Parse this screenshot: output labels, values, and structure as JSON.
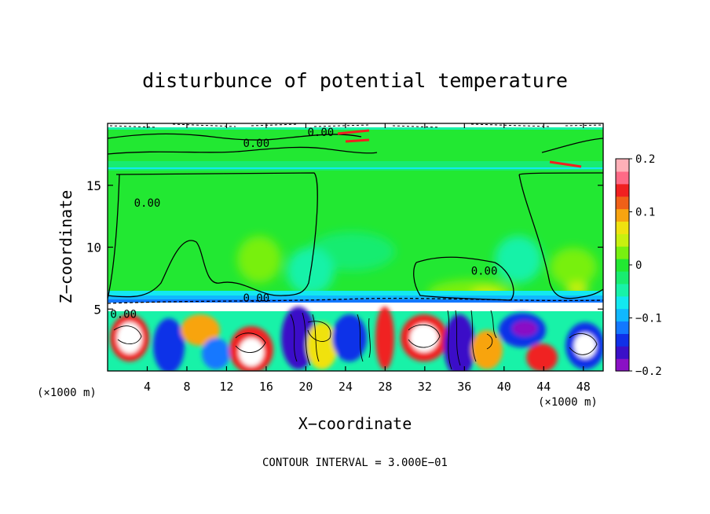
{
  "chart_data": {
    "type": "heatmap",
    "title": "disturbunce of potential temperature",
    "xlabel": "X−coordinate",
    "ylabel": "Z−coordinate",
    "x_unit_left": "(×1000 m)",
    "x_unit_right": "(×1000 m)",
    "xlim": [
      0,
      50
    ],
    "ylim": [
      0,
      20
    ],
    "x_ticks": [
      "4",
      "8",
      "12",
      "16",
      "20",
      "24",
      "28",
      "32",
      "36",
      "40",
      "44",
      "48"
    ],
    "x_tick_values": [
      4,
      8,
      12,
      16,
      20,
      24,
      28,
      32,
      36,
      40,
      44,
      48
    ],
    "y_ticks": [
      "5",
      "10",
      "15"
    ],
    "y_tick_values": [
      5,
      10,
      15
    ],
    "contour_labels": [
      {
        "text": "0.00",
        "x": 15,
        "y": 18.4
      },
      {
        "text": "0.00",
        "x": 21.5,
        "y": 19.3
      },
      {
        "text": "0.00",
        "x": 4,
        "y": 13.6
      },
      {
        "text": "0.00",
        "x": 15,
        "y": 5.9
      },
      {
        "text": "0.00",
        "x": 38,
        "y": 8.1
      },
      {
        "text": "0.00",
        "x": 1.6,
        "y": 4.6
      }
    ],
    "contour_interval_text": "CONTOUR INTERVAL = 3.000E−01",
    "colorbar": {
      "range": [
        -0.2,
        0.2
      ],
      "tick_labels": [
        "0.2",
        "0.1",
        "0",
        "−0.1",
        "−0.2"
      ],
      "tick_values": [
        0.2,
        0.1,
        0,
        -0.1,
        -0.2
      ],
      "colors": [
        "#8a11c5",
        "#3a10c8",
        "#1030e8",
        "#1378ff",
        "#10b8ff",
        "#13e8f0",
        "#18f2a8",
        "#18ec70",
        "#22e832",
        "#78f010",
        "#c8f010",
        "#f0e210",
        "#f8a410",
        "#f06018",
        "#f02020",
        "#ff6a86",
        "#ffb0b8"
      ]
    }
  }
}
